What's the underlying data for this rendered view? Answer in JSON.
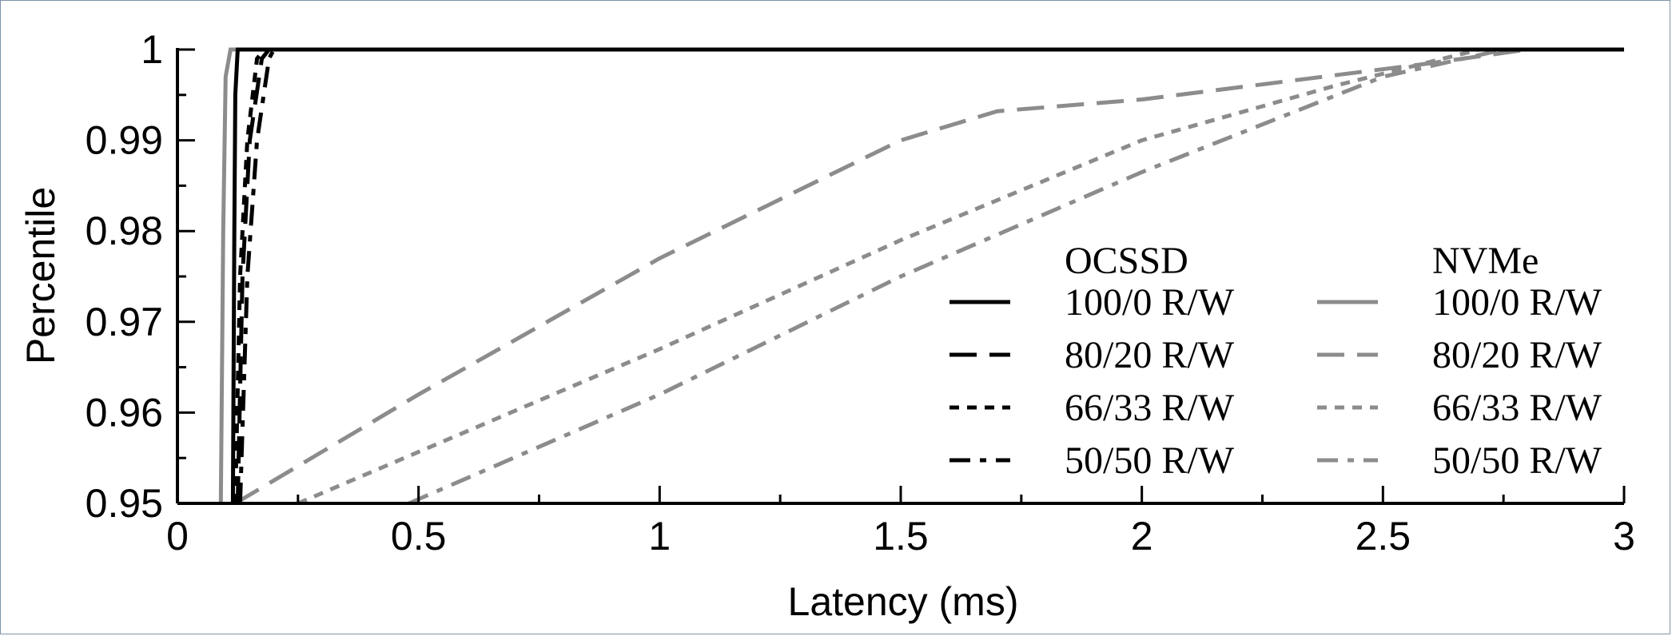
{
  "chart_data": {
    "type": "line",
    "title": "",
    "xlabel": "Latency (ms)",
    "ylabel": "Percentile",
    "xlim": [
      0,
      3
    ],
    "ylim": [
      0.95,
      1
    ],
    "x_ticks": [
      0,
      0.5,
      1,
      1.5,
      2,
      2.5,
      3
    ],
    "x_tick_labels": [
      "0",
      "0.5",
      "1",
      "1.5",
      "2",
      "2.5",
      "3"
    ],
    "y_ticks": [
      0.95,
      0.96,
      0.97,
      0.98,
      0.99,
      1
    ],
    "y_tick_labels": [
      "0.95",
      "0.96",
      "0.97",
      "0.98",
      "0.99",
      "1"
    ],
    "grid": false,
    "legend_placement": "bottom-right",
    "legend_groups": [
      {
        "title": "OCSSD",
        "color": "#000000"
      },
      {
        "title": "NVMe",
        "color": "#8c8c8c"
      }
    ],
    "series": [
      {
        "group": "OCSSD",
        "name": "100/0 R/W",
        "style": "solid",
        "color": "#000000",
        "points": [
          [
            0.115,
            0.95
          ],
          [
            0.118,
            0.98
          ],
          [
            0.12,
            0.995
          ],
          [
            0.125,
            1.0
          ],
          [
            3.0,
            1.0
          ]
        ]
      },
      {
        "group": "OCSSD",
        "name": "80/20 R/W",
        "style": "dash",
        "color": "#000000",
        "points": [
          [
            0.125,
            0.95
          ],
          [
            0.135,
            0.975
          ],
          [
            0.15,
            0.99
          ],
          [
            0.175,
            0.999
          ],
          [
            0.19,
            1.0
          ]
        ]
      },
      {
        "group": "OCSSD",
        "name": "66/33 R/W",
        "style": "dot",
        "color": "#000000",
        "points": [
          [
            0.12,
            0.95
          ],
          [
            0.13,
            0.975
          ],
          [
            0.145,
            0.99
          ],
          [
            0.165,
            0.999
          ],
          [
            0.18,
            1.0
          ]
        ]
      },
      {
        "group": "OCSSD",
        "name": "50/50 R/W",
        "style": "dashdot",
        "color": "#000000",
        "points": [
          [
            0.13,
            0.95
          ],
          [
            0.145,
            0.975
          ],
          [
            0.165,
            0.99
          ],
          [
            0.19,
            0.999
          ],
          [
            0.2,
            1.0
          ]
        ]
      },
      {
        "group": "NVMe",
        "name": "100/0 R/W",
        "style": "solid",
        "color": "#8c8c8c",
        "points": [
          [
            0.09,
            0.95
          ],
          [
            0.095,
            0.98
          ],
          [
            0.1,
            0.997
          ],
          [
            0.11,
            1.0
          ],
          [
            0.14,
            1.0
          ]
        ]
      },
      {
        "group": "NVMe",
        "name": "80/20 R/W",
        "style": "dash",
        "color": "#8c8c8c",
        "points": [
          [
            0.12,
            0.95
          ],
          [
            0.5,
            0.962
          ],
          [
            1.0,
            0.977
          ],
          [
            1.5,
            0.99
          ],
          [
            1.7,
            0.9932
          ],
          [
            2.0,
            0.9945
          ],
          [
            2.3,
            0.9965
          ],
          [
            2.6,
            0.9985
          ],
          [
            2.8,
            1.0
          ],
          [
            3.0,
            1.0
          ]
        ]
      },
      {
        "group": "NVMe",
        "name": "66/33 R/W",
        "style": "dot",
        "color": "#8c8c8c",
        "points": [
          [
            0.25,
            0.95
          ],
          [
            1.0,
            0.967
          ],
          [
            1.5,
            0.979
          ],
          [
            2.0,
            0.99
          ],
          [
            2.4,
            0.996
          ],
          [
            2.7,
            1.0
          ],
          [
            3.0,
            1.0
          ]
        ]
      },
      {
        "group": "NVMe",
        "name": "50/50 R/W",
        "style": "dashdot",
        "color": "#8c8c8c",
        "points": [
          [
            0.48,
            0.95
          ],
          [
            1.0,
            0.962
          ],
          [
            1.5,
            0.975
          ],
          [
            2.0,
            0.9865
          ],
          [
            2.5,
            0.997
          ],
          [
            2.75,
            1.0
          ],
          [
            3.0,
            1.0
          ]
        ]
      }
    ]
  }
}
